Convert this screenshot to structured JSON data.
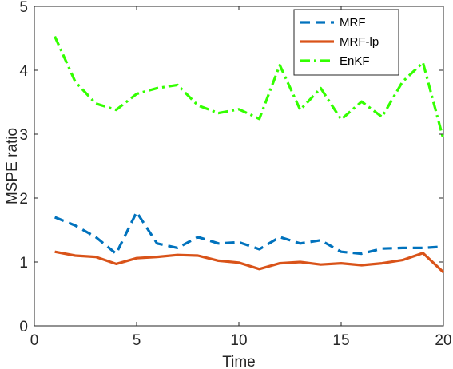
{
  "chart_data": {
    "type": "line",
    "title": "",
    "xlabel": "Time",
    "ylabel": "MSPE ratio",
    "xlim": [
      0,
      20
    ],
    "ylim": [
      0,
      5
    ],
    "xticks": [
      "0",
      "5",
      "10",
      "15",
      "20"
    ],
    "yticks": [
      "0",
      "1",
      "2",
      "3",
      "4",
      "5"
    ],
    "grid": false,
    "legend_position": "top-right",
    "x": [
      1,
      2,
      3,
      4,
      5,
      6,
      7,
      8,
      9,
      10,
      11,
      12,
      13,
      14,
      15,
      16,
      17,
      18,
      19,
      20
    ],
    "series": [
      {
        "name": "MRF",
        "style": "dashed",
        "color": "#0072BD",
        "values": [
          1.7,
          1.57,
          1.39,
          1.13,
          1.78,
          1.29,
          1.22,
          1.39,
          1.29,
          1.31,
          1.2,
          1.39,
          1.29,
          1.34,
          1.16,
          1.13,
          1.21,
          1.22,
          1.22,
          1.24
        ]
      },
      {
        "name": "MRF-lp",
        "style": "solid",
        "color": "#D95319",
        "values": [
          1.16,
          1.1,
          1.08,
          0.97,
          1.06,
          1.08,
          1.11,
          1.1,
          1.02,
          0.99,
          0.89,
          0.98,
          1.0,
          0.96,
          0.98,
          0.95,
          0.98,
          1.03,
          1.14,
          0.84
        ]
      },
      {
        "name": "EnKF",
        "style": "dashdot",
        "color": "#33FF00",
        "values": [
          4.53,
          3.82,
          3.48,
          3.38,
          3.63,
          3.72,
          3.77,
          3.45,
          3.33,
          3.39,
          3.24,
          4.08,
          3.38,
          3.72,
          3.23,
          3.51,
          3.27,
          3.82,
          4.12,
          2.92
        ]
      }
    ]
  }
}
